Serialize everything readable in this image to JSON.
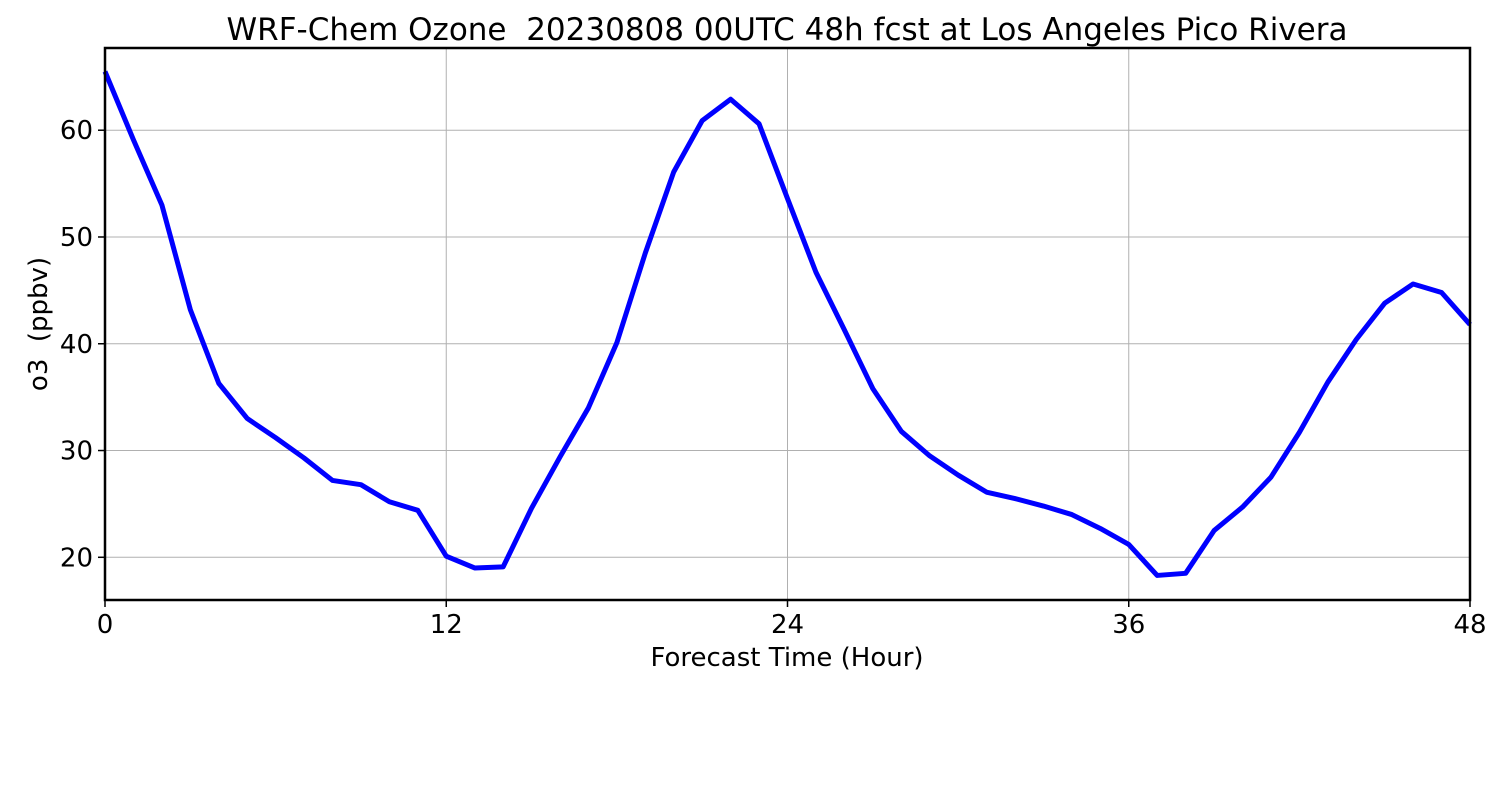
{
  "chart_data": {
    "type": "line",
    "title": "WRF-Chem Ozone  20230808 00UTC 48h fcst at Los Angeles Pico Rivera",
    "xlabel": "Forecast Time (Hour)",
    "ylabel": "o3  (ppbv)",
    "xlim": [
      0,
      48
    ],
    "ylim": [
      16,
      67.7
    ],
    "xticks": [
      0,
      12,
      24,
      36,
      48
    ],
    "yticks": [
      20,
      30,
      40,
      50,
      60
    ],
    "grid": true,
    "series": [
      {
        "color": "#0000ff",
        "x": [
          0,
          1,
          2,
          3,
          4,
          5,
          6,
          7,
          8,
          9,
          10,
          11,
          12,
          13,
          14,
          15,
          16,
          17,
          18,
          19,
          20,
          21,
          22,
          23,
          24,
          25,
          26,
          27,
          28,
          29,
          30,
          31,
          32,
          33,
          34,
          35,
          36,
          37,
          38,
          39,
          40,
          41,
          42,
          43,
          44,
          45,
          46,
          47,
          48
        ],
        "values": [
          65.5,
          59.1,
          53.0,
          43.2,
          36.3,
          33.0,
          31.2,
          29.3,
          27.2,
          26.8,
          25.2,
          24.4,
          20.1,
          19.0,
          19.1,
          24.6,
          29.4,
          34.0,
          40.1,
          48.5,
          56.1,
          60.9,
          62.9,
          60.6,
          53.6,
          46.7,
          41.3,
          35.8,
          31.8,
          29.5,
          27.7,
          26.1,
          25.5,
          24.8,
          24.0,
          22.7,
          21.2,
          18.3,
          18.5,
          22.5,
          24.7,
          27.5,
          31.7,
          36.4,
          40.4,
          43.8,
          45.6,
          44.8,
          41.8
        ]
      }
    ]
  }
}
